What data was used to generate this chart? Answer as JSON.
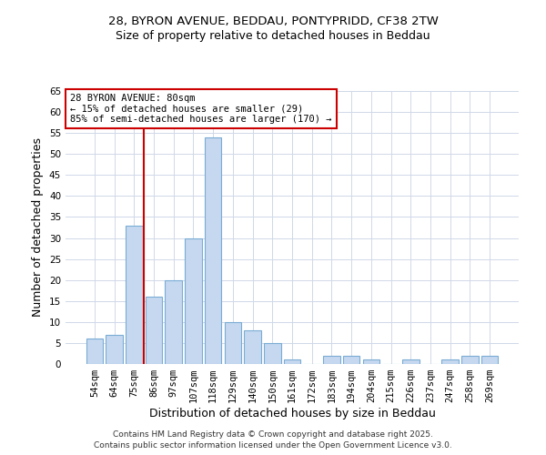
{
  "title_line1": "28, BYRON AVENUE, BEDDAU, PONTYPRIDD, CF38 2TW",
  "title_line2": "Size of property relative to detached houses in Beddau",
  "xlabel": "Distribution of detached houses by size in Beddau",
  "ylabel": "Number of detached properties",
  "bar_labels": [
    "54sqm",
    "64sqm",
    "75sqm",
    "86sqm",
    "97sqm",
    "107sqm",
    "118sqm",
    "129sqm",
    "140sqm",
    "150sqm",
    "161sqm",
    "172sqm",
    "183sqm",
    "194sqm",
    "204sqm",
    "215sqm",
    "226sqm",
    "237sqm",
    "247sqm",
    "258sqm",
    "269sqm"
  ],
  "bar_values": [
    6,
    7,
    33,
    16,
    20,
    30,
    54,
    10,
    8,
    5,
    1,
    0,
    2,
    2,
    1,
    0,
    1,
    0,
    1,
    2,
    2
  ],
  "bar_color": "#c5d8f0",
  "bar_edge_color": "#7aacd4",
  "property_line_x": 2.5,
  "annotation_title": "28 BYRON AVENUE: 80sqm",
  "annotation_line2": "← 15% of detached houses are smaller (29)",
  "annotation_line3": "85% of semi-detached houses are larger (170) →",
  "annotation_box_color": "#ffffff",
  "annotation_box_edge_color": "#cc0000",
  "red_line_color": "#cc0000",
  "ylim": [
    0,
    65
  ],
  "yticks": [
    0,
    5,
    10,
    15,
    20,
    25,
    30,
    35,
    40,
    45,
    50,
    55,
    60,
    65
  ],
  "footer_line1": "Contains HM Land Registry data © Crown copyright and database right 2025.",
  "footer_line2": "Contains public sector information licensed under the Open Government Licence v3.0.",
  "bg_color": "#ffffff",
  "grid_color": "#d0d8e8",
  "title_fontsize": 9.5,
  "subtitle_fontsize": 9,
  "axis_label_fontsize": 9,
  "tick_fontsize": 7.5,
  "annotation_fontsize": 7.5,
  "footer_fontsize": 6.5
}
